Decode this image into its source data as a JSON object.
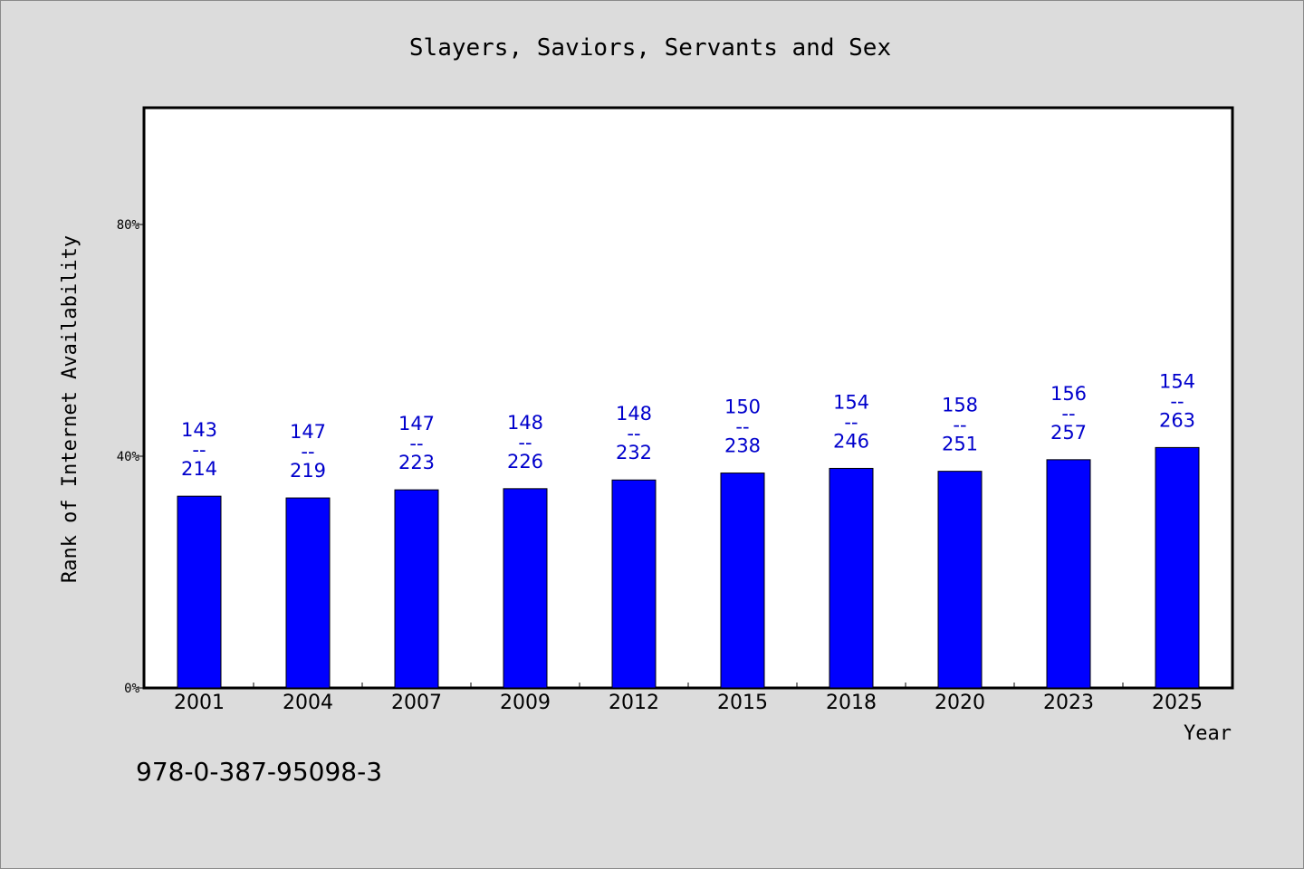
{
  "chart_data": {
    "type": "bar",
    "title": "Slayers, Saviors, Servants and Sex",
    "xlabel": "Year",
    "ylabel": "Rank of Internet Availability",
    "categories": [
      "2001",
      "2004",
      "2007",
      "2009",
      "2012",
      "2015",
      "2018",
      "2020",
      "2023",
      "2025"
    ],
    "values": [
      0.331,
      0.328,
      0.342,
      0.344,
      0.359,
      0.371,
      0.379,
      0.374,
      0.394,
      0.415
    ],
    "value_labels_top": [
      "143",
      "147",
      "147",
      "148",
      "148",
      "150",
      "154",
      "158",
      "156",
      "154"
    ],
    "value_labels_separator": "--",
    "value_labels_bottom": [
      "214",
      "219",
      "223",
      "226",
      "232",
      "238",
      "246",
      "251",
      "257",
      "263"
    ],
    "yticks": [
      {
        "value": 0.0,
        "label": "0%"
      },
      {
        "value": 0.4,
        "label": "40%"
      },
      {
        "value": 0.8,
        "label": "80%"
      }
    ],
    "ylim": [
      0,
      1.0
    ],
    "grid": false,
    "bar_color": "#0000ff",
    "label_color": "#0000cc"
  },
  "footer": {
    "isbn": "978-0-387-95098-3"
  }
}
